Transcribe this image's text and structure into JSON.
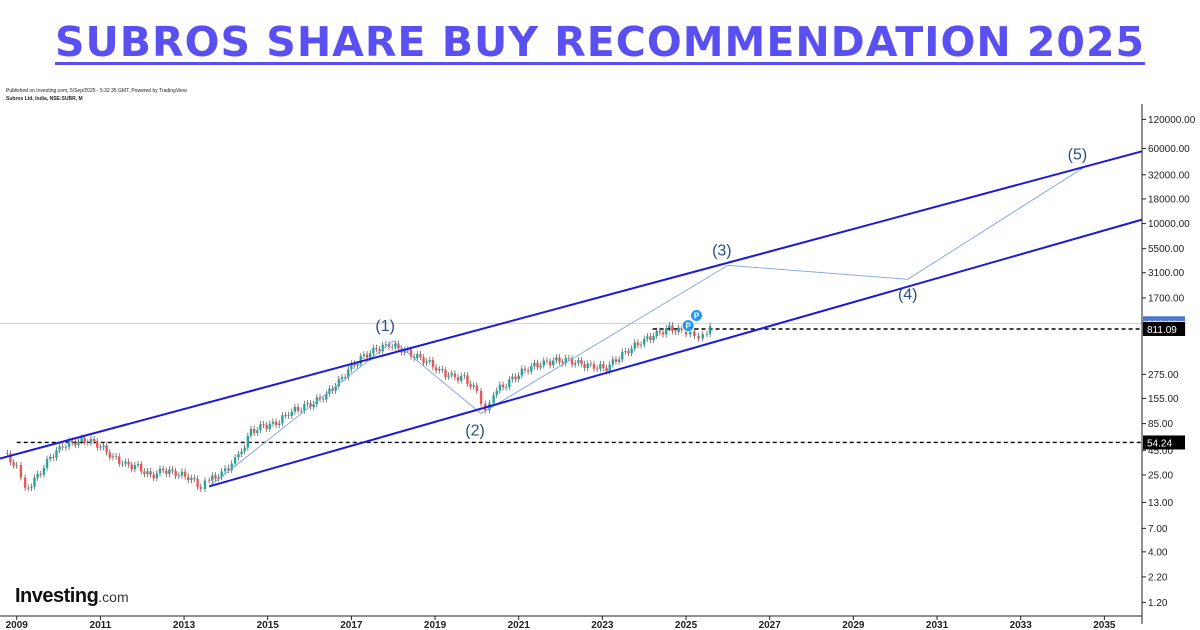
{
  "header": {
    "title": "SUBROS SHARE BUY RECOMMENDATION 2025",
    "published": "Published on Investing.com, 5/Sep/2025 - 5:32:35 GMT, Powered by TradingView.",
    "symbol": "Subros Ltd, India, NSE:SUBR, M"
  },
  "brand": {
    "main": "Investing",
    "suffix": ".com"
  },
  "chart_data": {
    "type": "line",
    "yscale": "log",
    "xlim": [
      2008.6,
      2035.9
    ],
    "ylim": [
      1.0,
      150000
    ],
    "x_ticks": [
      "2009",
      "2011",
      "2013",
      "2015",
      "2017",
      "2019",
      "2021",
      "2023",
      "2025",
      "2027",
      "2029",
      "2031",
      "2033",
      "2035"
    ],
    "y_ticks": [
      "120000.00",
      "60000.00",
      "32000.00",
      "18000.00",
      "10000.00",
      "5500.00",
      "3100.00",
      "1700.00",
      "929.00",
      "829.15",
      "811.09",
      "275.00",
      "155.00",
      "85.00",
      "54.24",
      "45.00",
      "25.00",
      "13.00",
      "7.00",
      "4.00",
      "2.20",
      "1.20"
    ],
    "price_labels": [
      {
        "text": "929.00",
        "value": 929,
        "color": "#4a76d6"
      },
      {
        "text": "829.15",
        "value": 829.15,
        "color": "#ffffff"
      },
      {
        "text": "811.09",
        "value": 811.09,
        "color": "#000000"
      },
      {
        "text": "54.24",
        "value": 54.24,
        "color": "#000000"
      }
    ],
    "series": [
      {
        "values_x": [
          2008.7,
          2009.0,
          2009.2,
          2009.5,
          2009.8,
          2010.1,
          2010.4,
          2010.7,
          2011.0,
          2011.3,
          2011.6,
          2011.9,
          2012.2,
          2012.5,
          2012.8,
          2013.1,
          2013.4,
          2013.6,
          2013.9,
          2014.3,
          2014.6,
          2014.9,
          2015.2,
          2015.5,
          2015.8,
          2016.1,
          2016.4,
          2016.7,
          2017.0,
          2017.3,
          2017.6,
          2017.9,
          2018.2,
          2018.5,
          2018.8,
          2019.1,
          2019.4,
          2019.7,
          2020.0,
          2020.2,
          2020.4,
          2020.7,
          2021.0,
          2021.3,
          2021.6,
          2021.9,
          2022.2,
          2022.5,
          2022.8,
          2023.1,
          2023.4,
          2023.7,
          2024.0,
          2024.3,
          2024.6,
          2024.9,
          2025.1,
          2025.3,
          2025.5,
          2025.65
        ],
        "values_y": [
          42,
          30,
          17,
          24,
          38,
          50,
          55,
          58,
          50,
          38,
          32,
          30,
          24,
          28,
          26,
          24,
          19,
          22,
          26,
          38,
          70,
          80,
          85,
          110,
          125,
          140,
          170,
          230,
          330,
          420,
          500,
          560,
          500,
          430,
          380,
          300,
          260,
          250,
          180,
          120,
          180,
          220,
          280,
          330,
          360,
          380,
          380,
          350,
          330,
          320,
          420,
          520,
          620,
          720,
          820,
          760,
          780,
          690,
          780,
          900
        ]
      }
    ],
    "wave_path": [
      {
        "x": 2013.6,
        "y": 19
      },
      {
        "x": 2018.0,
        "y": 610,
        "label": "(1)"
      },
      {
        "x": 2020.1,
        "y": 108,
        "label": "(2)"
      },
      {
        "x": 2026.0,
        "y": 3700,
        "label": "(3)"
      },
      {
        "x": 2030.3,
        "y": 2650,
        "label": "(4)"
      },
      {
        "x": 2034.5,
        "y": 38000,
        "label": "(5)"
      }
    ],
    "channel": {
      "upper": [
        {
          "x": 2008.6,
          "y": 37
        },
        {
          "x": 2035.9,
          "y": 56000
        }
      ],
      "lower": [
        {
          "x": 2013.6,
          "y": 19
        },
        {
          "x": 2035.9,
          "y": 11000
        }
      ]
    },
    "horizontal_levels": [
      {
        "value": 54.24,
        "from": 2009.0
      },
      {
        "value": 811.09,
        "from": 2024.2
      }
    ],
    "markers": [
      {
        "x": 2025.25,
        "y": 1120,
        "text": "P"
      },
      {
        "x": 2025.05,
        "y": 880,
        "text": "P"
      }
    ],
    "colors": {
      "up": "#26a69a",
      "down": "#ef5350",
      "channel": "#1a1adb",
      "wave": "#7aa2e6",
      "label": "#2a4f85"
    }
  }
}
